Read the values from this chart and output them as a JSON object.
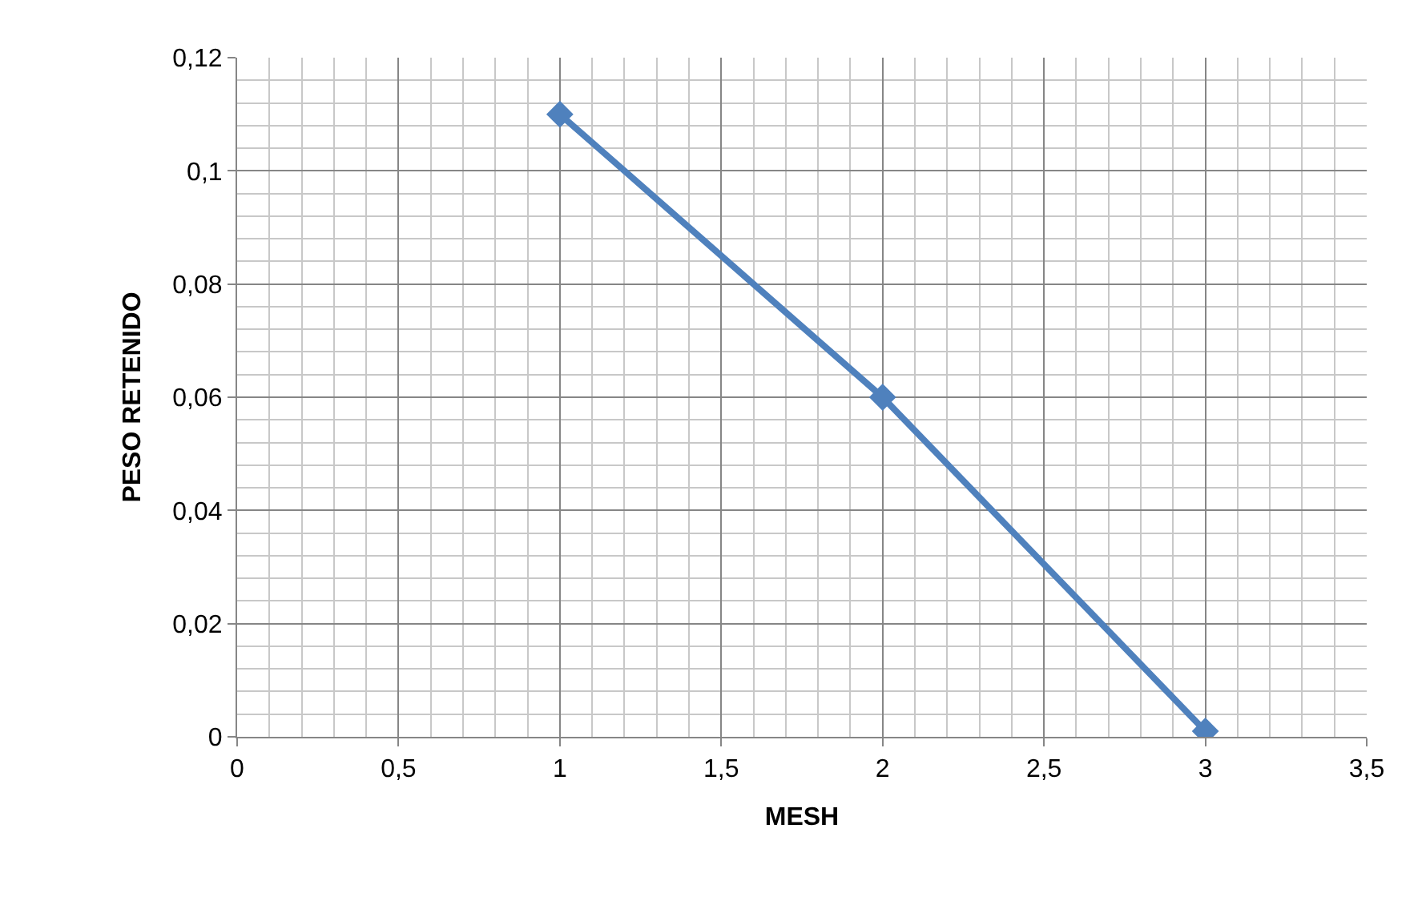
{
  "chart_data": {
    "type": "line",
    "xlabel": "MESH",
    "ylabel": "PESO RETENIDO",
    "x": [
      1,
      2,
      3
    ],
    "series": [
      {
        "color": "#4f81bd",
        "values": [
          0.11,
          0.06,
          0.001
        ]
      }
    ],
    "xlim": [
      0,
      3.5
    ],
    "xticks": [
      {
        "value": 0,
        "label": "0"
      },
      {
        "value": 0.5,
        "label": "0,5"
      },
      {
        "value": 1,
        "label": "1"
      },
      {
        "value": 1.5,
        "label": "1,5"
      },
      {
        "value": 2,
        "label": "2"
      },
      {
        "value": 2.5,
        "label": "2,5"
      },
      {
        "value": 3,
        "label": "3"
      },
      {
        "value": 3.5,
        "label": "3,5"
      }
    ],
    "ylim": [
      0,
      0.12
    ],
    "yticks": [
      {
        "value": 0,
        "label": "0"
      },
      {
        "value": 0.02,
        "label": "0,02"
      },
      {
        "value": 0.04,
        "label": "0,04"
      },
      {
        "value": 0.06,
        "label": "0,06"
      },
      {
        "value": 0.08,
        "label": "0,08"
      },
      {
        "value": 0.1,
        "label": "0,1"
      },
      {
        "value": 0.12,
        "label": "0,12"
      }
    ],
    "grid": true,
    "legend": false,
    "marker": "diamond",
    "line_style": "solid"
  }
}
